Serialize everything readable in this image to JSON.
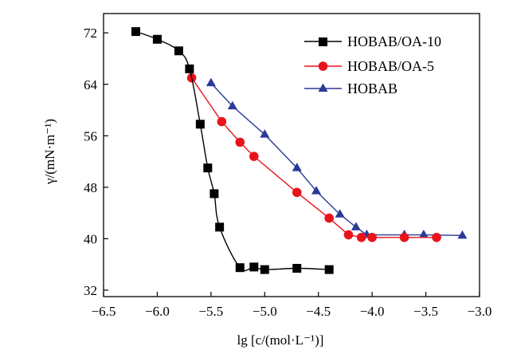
{
  "chart_data": {
    "type": "line",
    "title": "",
    "xlabel": "lg [c/(mol·L⁻¹)]",
    "ylabel": "γ/(mN·m⁻¹)",
    "xlim": [
      -6.5,
      -3.0
    ],
    "ylim": [
      31,
      75
    ],
    "xticks": [
      "−6.5",
      "−6.0",
      "−5.5",
      "−5.0",
      "−4.5",
      "−4.0",
      "−3.5",
      "−3.0"
    ],
    "xtick_values": [
      -6.5,
      -6.0,
      -5.5,
      -5.0,
      -4.5,
      -4.0,
      -3.5,
      -3.0
    ],
    "yticks": [
      "32",
      "40",
      "48",
      "56",
      "64",
      "72"
    ],
    "ytick_values": [
      32,
      40,
      48,
      56,
      64,
      72
    ],
    "grid": false,
    "legend_position": "top-right",
    "series": [
      {
        "name": "HOBAB/OA-10",
        "color": "#000000",
        "marker": "square",
        "x": [
          -6.2,
          -6.0,
          -5.8,
          -5.7,
          -5.6,
          -5.53,
          -5.47,
          -5.42,
          -5.23,
          -5.1,
          -5.0,
          -4.7,
          -4.4
        ],
        "y": [
          72.2,
          71.0,
          69.2,
          66.4,
          57.8,
          51.0,
          47.0,
          41.8,
          35.5,
          35.6,
          35.2,
          35.4,
          35.2
        ]
      },
      {
        "name": "HOBAB/OA-5",
        "color": "#e8141c",
        "marker": "circle",
        "x": [
          -5.68,
          -5.4,
          -5.23,
          -5.1,
          -4.7,
          -4.4,
          -4.22,
          -4.1,
          -4.0,
          -3.7,
          -3.4
        ],
        "y": [
          65.0,
          58.2,
          55.0,
          52.8,
          47.2,
          43.2,
          40.6,
          40.2,
          40.2,
          40.2,
          40.2
        ]
      },
      {
        "name": "HOBAB",
        "color": "#2b3a97",
        "marker": "triangle",
        "x": [
          -5.5,
          -5.3,
          -5.0,
          -4.7,
          -4.52,
          -4.3,
          -4.15,
          -4.05,
          -3.7,
          -3.52,
          -3.16
        ],
        "y": [
          64.2,
          60.6,
          56.2,
          51.0,
          47.4,
          43.8,
          41.8,
          40.6,
          40.6,
          40.6,
          40.5
        ]
      }
    ]
  }
}
